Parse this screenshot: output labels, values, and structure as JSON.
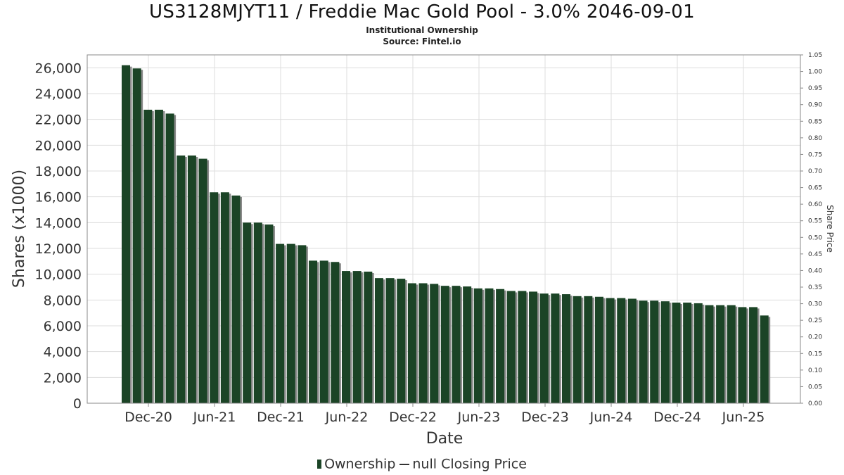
{
  "colors": {
    "bar": "#1b4426",
    "bar_shadow": "#8a8a8a",
    "grid": "#dddddd",
    "axis": "#888888"
  },
  "chart_data": {
    "type": "bar",
    "title": "US3128MJYT11 / Freddie Mac Gold Pool - 3.0% 2046-09-01",
    "subtitle_lines": [
      "Institutional Ownership",
      "Source: Fintel.io"
    ],
    "xlabel": "Date",
    "ylabel": "Shares (x1000)",
    "y2label": "Share Price",
    "ylim": [
      0,
      27000
    ],
    "y_ticks": [
      0,
      2000,
      4000,
      6000,
      8000,
      10000,
      12000,
      14000,
      16000,
      18000,
      20000,
      22000,
      24000,
      26000
    ],
    "y_tick_labels": [
      "0",
      "2,000",
      "4,000",
      "6,000",
      "8,000",
      "10,000",
      "12,000",
      "14,000",
      "16,000",
      "18,000",
      "20,000",
      "22,000",
      "24,000",
      "26,000"
    ],
    "y2lim": [
      0,
      1.05
    ],
    "y2_tick_labels": [
      "0.00",
      "0.05",
      "0.10",
      "0.15",
      "0.20",
      "0.25",
      "0.30",
      "0.35",
      "0.40",
      "0.45",
      "0.50",
      "0.55",
      "0.60",
      "0.65",
      "0.70",
      "0.75",
      "0.80",
      "0.85",
      "0.90",
      "0.95",
      "1.00",
      "1.05"
    ],
    "x_tick_labels": [
      "Dec-20",
      "Jun-21",
      "Dec-21",
      "Jun-22",
      "Dec-22",
      "Jun-23",
      "Dec-23",
      "Jun-24",
      "Dec-24",
      "Jun-25"
    ],
    "grid": true,
    "legend_position": "bottom",
    "series": [
      {
        "name": "Ownership",
        "values": [
          26200,
          25950,
          22750,
          22750,
          22450,
          19200,
          19200,
          18950,
          16350,
          16350,
          16100,
          14000,
          14000,
          13850,
          12350,
          12350,
          12250,
          11050,
          11050,
          10950,
          10250,
          10250,
          10200,
          9700,
          9700,
          9650,
          9300,
          9300,
          9250,
          9100,
          9100,
          9050,
          8900,
          8900,
          8850,
          8700,
          8700,
          8650,
          8500,
          8500,
          8450,
          8300,
          8300,
          8250,
          8150,
          8150,
          8100,
          7950,
          7950,
          7900,
          7800,
          7800,
          7750,
          7600,
          7600,
          7600,
          7450,
          7450,
          6800
        ]
      }
    ],
    "legend": {
      "ownership": "Ownership",
      "price": "null Closing Price"
    }
  }
}
